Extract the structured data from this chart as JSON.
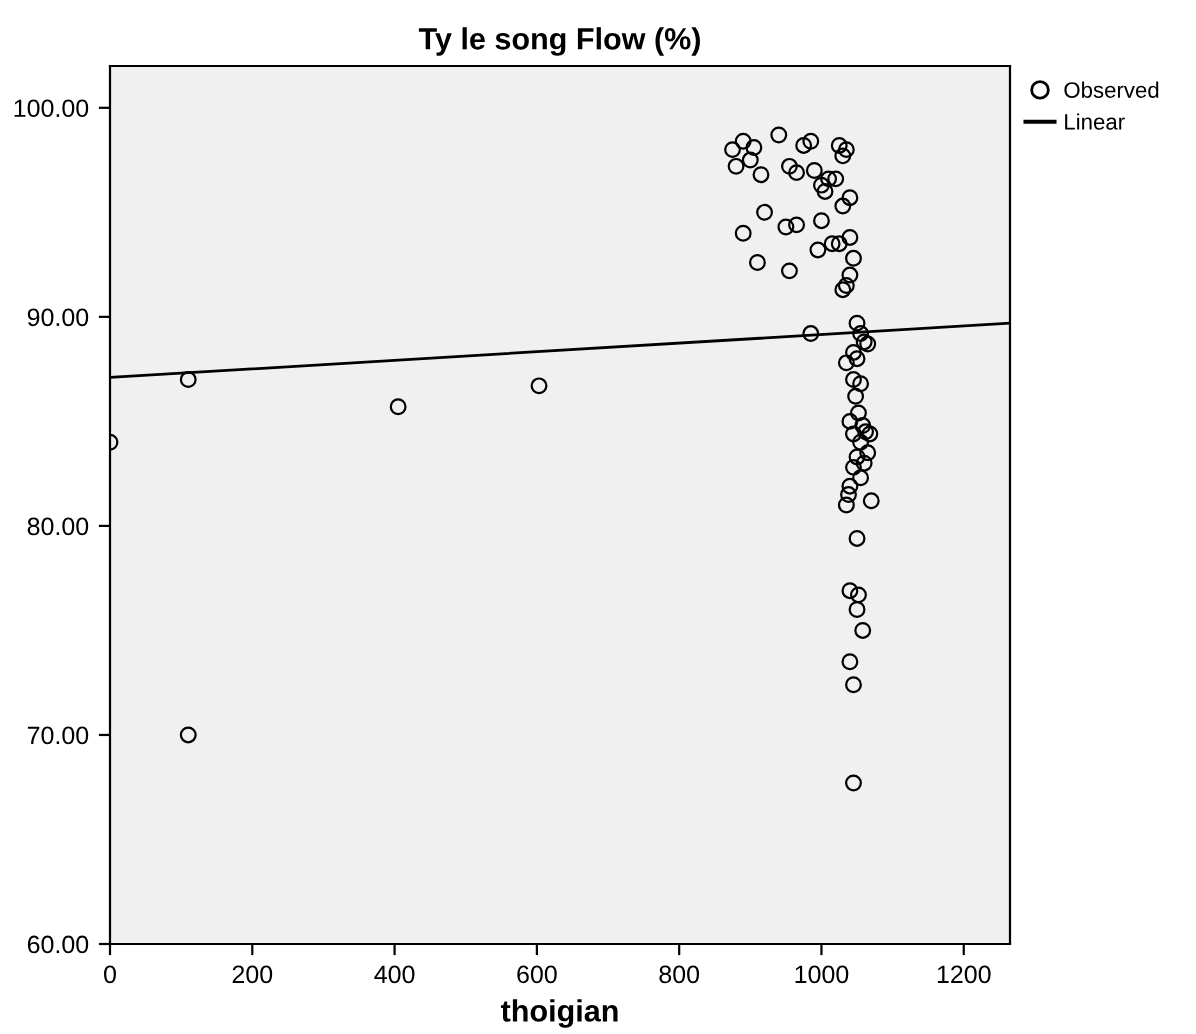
{
  "chart_data": {
    "type": "scatter",
    "title": "Ty le song Flow (%)",
    "xlabel": "thoigian",
    "xlim": [
      0,
      1265
    ],
    "xticks": [
      0,
      200,
      400,
      600,
      800,
      1000,
      1200
    ],
    "ylim": [
      60,
      102
    ],
    "yticks": [
      {
        "value": 60,
        "label": "60.00"
      },
      {
        "value": 70,
        "label": "70.00"
      },
      {
        "value": 80,
        "label": "80.00"
      },
      {
        "value": 90,
        "label": "90.00"
      },
      {
        "value": 100,
        "label": "100.00"
      }
    ],
    "grid": false,
    "legend": "top right",
    "series": [
      {
        "name": "Observed",
        "marker": "circle",
        "color": "#000000",
        "x": [
          0,
          110,
          110,
          405,
          603,
          875,
          890,
          905,
          880,
          900,
          915,
          940,
          955,
          965,
          975,
          985,
          990,
          1000,
          1005,
          1010,
          1020,
          1025,
          1030,
          1035,
          1040,
          1030,
          920,
          950,
          965,
          1000,
          1015,
          1025,
          1040,
          890,
          910,
          955,
          995,
          1045,
          1040,
          1035,
          1030,
          985,
          1050,
          1055,
          1060,
          1045,
          1065,
          1035,
          1050,
          1045,
          1055,
          1048,
          1052,
          1040,
          1058,
          1062,
          1068,
          1045,
          1055,
          1050,
          1060,
          1065,
          1045,
          1055,
          1040,
          1038,
          1035,
          1070,
          1050,
          1040,
          1052,
          1050,
          1058,
          1040,
          1045,
          1045
        ],
        "values": [
          84.0,
          87.0,
          70.0,
          85.7,
          86.7,
          98.0,
          98.4,
          98.1,
          97.2,
          97.5,
          96.8,
          98.7,
          97.2,
          96.9,
          98.2,
          98.4,
          97.0,
          96.3,
          96.0,
          96.6,
          96.6,
          98.2,
          97.7,
          98.0,
          95.7,
          95.3,
          95.0,
          94.3,
          94.4,
          94.6,
          93.5,
          93.5,
          93.8,
          94.0,
          92.6,
          92.2,
          93.2,
          92.8,
          92.0,
          91.5,
          91.3,
          89.2,
          89.7,
          89.2,
          88.8,
          88.3,
          88.7,
          87.8,
          88.0,
          87.0,
          86.8,
          86.2,
          85.4,
          85.0,
          84.8,
          84.5,
          84.4,
          84.4,
          84.0,
          83.3,
          83.0,
          83.5,
          82.8,
          82.3,
          81.9,
          81.5,
          81.0,
          81.2,
          79.4,
          76.9,
          76.7,
          76.0,
          75.0,
          73.5,
          72.4,
          67.7
        ]
      },
      {
        "name": "Linear",
        "type": "line",
        "marker": "none",
        "line_style": "solid",
        "color": "#000000",
        "x": [
          0,
          1265
        ],
        "values": [
          87.1,
          89.7
        ]
      }
    ]
  }
}
